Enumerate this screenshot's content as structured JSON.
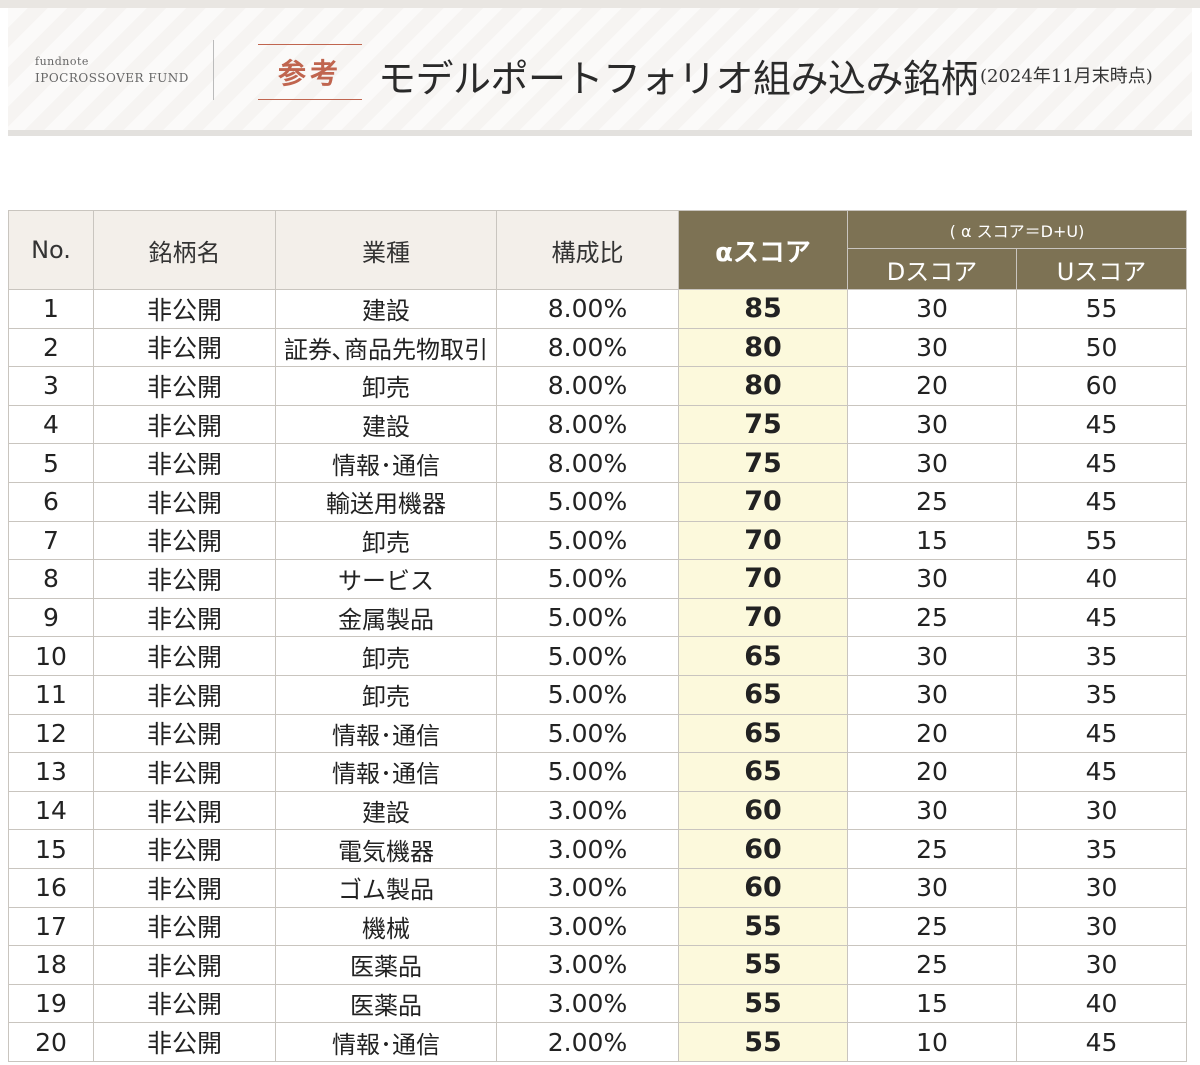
{
  "header": {
    "brand_line1": "fundnote",
    "brand_line2": "IPOCROSSOVER FUND",
    "tag": "参考",
    "title": "モデルポートフォリオ組み込み銘柄",
    "date_note": "(2024年11月末時点)"
  },
  "table": {
    "columns": {
      "no": "No.",
      "name": "銘柄名",
      "industry": "業種",
      "ratio": "構成比",
      "alpha": "αスコア",
      "formula": "( α スコア＝D+U)",
      "d_score": "Dスコア",
      "u_score": "Uスコア"
    },
    "rows": [
      {
        "no": "1",
        "name": "非公開",
        "industry": "建設",
        "ratio": "8.00%",
        "alpha": "85",
        "d": "30",
        "u": "55"
      },
      {
        "no": "2",
        "name": "非公開",
        "industry": "証券､商品先物取引",
        "ratio": "8.00%",
        "alpha": "80",
        "d": "30",
        "u": "50"
      },
      {
        "no": "3",
        "name": "非公開",
        "industry": "卸売",
        "ratio": "8.00%",
        "alpha": "80",
        "d": "20",
        "u": "60"
      },
      {
        "no": "4",
        "name": "非公開",
        "industry": "建設",
        "ratio": "8.00%",
        "alpha": "75",
        "d": "30",
        "u": "45"
      },
      {
        "no": "5",
        "name": "非公開",
        "industry": "情報･通信",
        "ratio": "8.00%",
        "alpha": "75",
        "d": "30",
        "u": "45"
      },
      {
        "no": "6",
        "name": "非公開",
        "industry": "輸送用機器",
        "ratio": "5.00%",
        "alpha": "70",
        "d": "25",
        "u": "45"
      },
      {
        "no": "7",
        "name": "非公開",
        "industry": "卸売",
        "ratio": "5.00%",
        "alpha": "70",
        "d": "15",
        "u": "55"
      },
      {
        "no": "8",
        "name": "非公開",
        "industry": "サービス",
        "ratio": "5.00%",
        "alpha": "70",
        "d": "30",
        "u": "40"
      },
      {
        "no": "9",
        "name": "非公開",
        "industry": "金属製品",
        "ratio": "5.00%",
        "alpha": "70",
        "d": "25",
        "u": "45"
      },
      {
        "no": "10",
        "name": "非公開",
        "industry": "卸売",
        "ratio": "5.00%",
        "alpha": "65",
        "d": "30",
        "u": "35"
      },
      {
        "no": "11",
        "name": "非公開",
        "industry": "卸売",
        "ratio": "5.00%",
        "alpha": "65",
        "d": "30",
        "u": "35"
      },
      {
        "no": "12",
        "name": "非公開",
        "industry": "情報･通信",
        "ratio": "5.00%",
        "alpha": "65",
        "d": "20",
        "u": "45"
      },
      {
        "no": "13",
        "name": "非公開",
        "industry": "情報･通信",
        "ratio": "5.00%",
        "alpha": "65",
        "d": "20",
        "u": "45"
      },
      {
        "no": "14",
        "name": "非公開",
        "industry": "建設",
        "ratio": "3.00%",
        "alpha": "60",
        "d": "30",
        "u": "30"
      },
      {
        "no": "15",
        "name": "非公開",
        "industry": "電気機器",
        "ratio": "3.00%",
        "alpha": "60",
        "d": "25",
        "u": "35"
      },
      {
        "no": "16",
        "name": "非公開",
        "industry": "ゴム製品",
        "ratio": "3.00%",
        "alpha": "60",
        "d": "30",
        "u": "30"
      },
      {
        "no": "17",
        "name": "非公開",
        "industry": "機械",
        "ratio": "3.00%",
        "alpha": "55",
        "d": "25",
        "u": "30"
      },
      {
        "no": "18",
        "name": "非公開",
        "industry": "医薬品",
        "ratio": "3.00%",
        "alpha": "55",
        "d": "25",
        "u": "30"
      },
      {
        "no": "19",
        "name": "非公開",
        "industry": "医薬品",
        "ratio": "3.00%",
        "alpha": "55",
        "d": "15",
        "u": "40"
      },
      {
        "no": "20",
        "name": "非公開",
        "industry": "情報･通信",
        "ratio": "2.00%",
        "alpha": "55",
        "d": "10",
        "u": "45"
      }
    ]
  },
  "colors": {
    "accent_header": "#7d7254",
    "alpha_cell": "#fcf9dc",
    "tag": "#c0654f"
  }
}
